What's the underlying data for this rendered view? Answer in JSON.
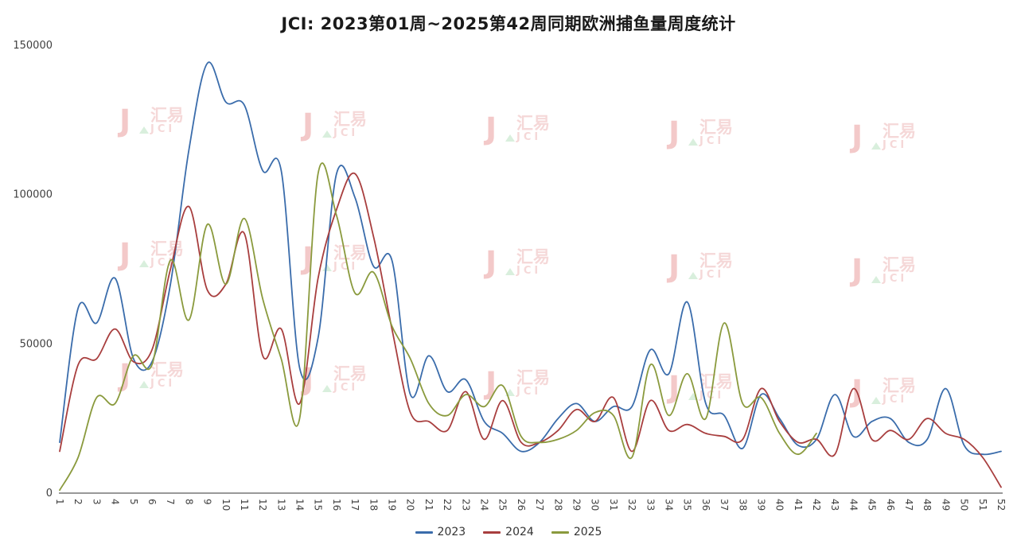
{
  "watermark": {
    "brand": "汇易",
    "sub": "JCI",
    "logo_glyph": "J",
    "color": "#e38a8a",
    "accent": "#8fcf9a"
  },
  "axis": {
    "y_tick_color": "#404040",
    "x_tick_color": "#404040",
    "axis_line_color": "#333333"
  },
  "chart_data": {
    "type": "line",
    "title": "JCI: 2023第01周~2025第42周同期欧洲捕鱼量周度统计",
    "xlabel": "",
    "ylabel": "",
    "ylim": [
      0,
      150000
    ],
    "yticks": [
      0,
      50000,
      100000,
      150000
    ],
    "grid": false,
    "legend_position": "bottom",
    "categories": [
      "1",
      "2",
      "3",
      "4",
      "5",
      "6",
      "7",
      "8",
      "9",
      "10",
      "11",
      "12",
      "13",
      "14",
      "15",
      "16",
      "17",
      "18",
      "19",
      "20",
      "21",
      "22",
      "23",
      "24",
      "25",
      "26",
      "27",
      "28",
      "29",
      "30",
      "31",
      "32",
      "33",
      "34",
      "35",
      "36",
      "37",
      "38",
      "39",
      "40",
      "41",
      "42",
      "43",
      "44",
      "45",
      "46",
      "47",
      "48",
      "49",
      "50",
      "51",
      "52"
    ],
    "series": [
      {
        "name": "2023",
        "color": "#3a6cab",
        "values": [
          17000,
          62000,
          57000,
          72000,
          45000,
          44000,
          70000,
          115000,
          144000,
          131000,
          130000,
          108000,
          108000,
          42000,
          52000,
          107000,
          99000,
          76000,
          78000,
          33000,
          46000,
          34000,
          38000,
          24000,
          20000,
          14000,
          17000,
          25000,
          30000,
          24000,
          29000,
          29000,
          48000,
          40000,
          64000,
          30000,
          26000,
          15000,
          33000,
          25000,
          16000,
          18000,
          33000,
          19000,
          24000,
          25000,
          17000,
          18000,
          35000,
          16000,
          13000,
          14000
        ]
      },
      {
        "name": "2024",
        "color": "#a83e3e",
        "values": [
          14000,
          43000,
          45000,
          55000,
          44000,
          48000,
          75000,
          96000,
          68000,
          70000,
          87000,
          46000,
          55000,
          30000,
          72000,
          95000,
          107000,
          86000,
          55000,
          27000,
          24000,
          21000,
          34000,
          18000,
          31000,
          17000,
          17000,
          21000,
          28000,
          24000,
          32000,
          14000,
          31000,
          21000,
          23000,
          20000,
          19000,
          18000,
          35000,
          24000,
          17000,
          18000,
          13000,
          35000,
          18000,
          21000,
          18000,
          25000,
          20000,
          18000,
          12000,
          2000
        ]
      },
      {
        "name": "2025",
        "color": "#8a9a3d",
        "values": [
          1000,
          12000,
          32000,
          30000,
          46000,
          43000,
          78000,
          58000,
          90000,
          70000,
          92000,
          65000,
          45000,
          25000,
          107000,
          93000,
          67000,
          74000,
          56000,
          45000,
          30000,
          26000,
          33000,
          29000,
          36000,
          19000,
          17000,
          18000,
          21000,
          27000,
          26000,
          12000,
          43000,
          26000,
          40000,
          25000,
          57000,
          30000,
          32000,
          20000,
          13000,
          20000
        ]
      }
    ]
  }
}
